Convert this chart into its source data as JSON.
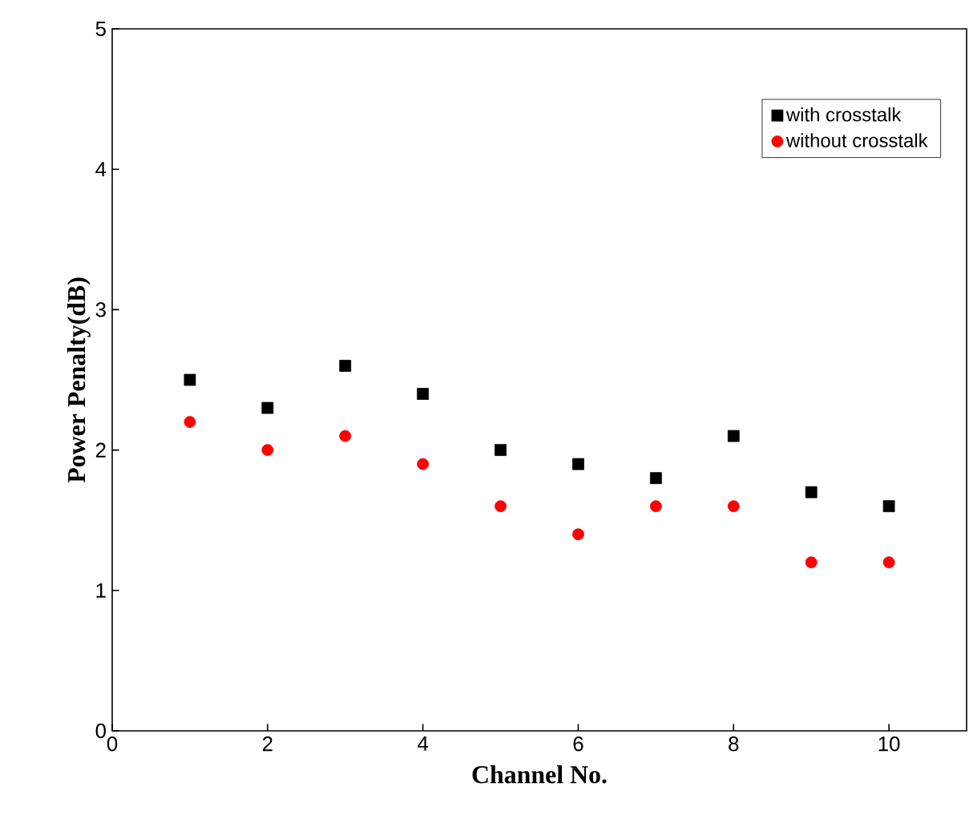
{
  "chart_data": {
    "type": "scatter",
    "xlabel": "Channel No.",
    "ylabel": "Power Penalty(dB)",
    "x": [
      1,
      2,
      3,
      4,
      5,
      6,
      7,
      8,
      9,
      10
    ],
    "series": [
      {
        "name": "with crosstalk",
        "color": "#000000",
        "marker": "square",
        "values": [
          2.5,
          2.3,
          2.6,
          2.4,
          2.0,
          1.9,
          1.8,
          2.1,
          1.7,
          1.6
        ]
      },
      {
        "name": "without crosstalk",
        "color": "#ff0000",
        "marker": "circle",
        "values": [
          2.2,
          2.0,
          2.1,
          1.9,
          1.6,
          1.4,
          1.6,
          1.6,
          1.2,
          1.2
        ]
      }
    ],
    "xlim": [
      0,
      11
    ],
    "ylim": [
      0,
      5
    ],
    "xticks": [
      0,
      2,
      4,
      6,
      8,
      10
    ],
    "yticks": [
      0,
      1,
      2,
      3,
      4,
      5
    ],
    "grid": false,
    "legend": "top right"
  }
}
